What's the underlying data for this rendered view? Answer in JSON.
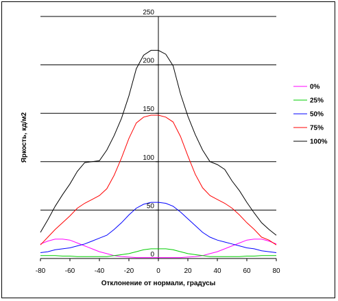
{
  "chart_data": {
    "type": "line",
    "xlabel": "Отклонение от нормали, градусы",
    "ylabel": "Яркость, кд/м2",
    "xlim": [
      -80,
      80
    ],
    "ylim": [
      0,
      250
    ],
    "x_ticks": [
      -80,
      -60,
      -40,
      -20,
      0,
      20,
      40,
      60,
      80
    ],
    "y_ticks": [
      50,
      100,
      150,
      200,
      250
    ],
    "grid": "horizontal",
    "legend": "right",
    "x": [
      -80,
      -75,
      -70,
      -65,
      -60,
      -55,
      -50,
      -45,
      -40,
      -35,
      -30,
      -25,
      -20,
      -15,
      -10,
      -5,
      0,
      5,
      10,
      15,
      20,
      25,
      30,
      35,
      40,
      45,
      50,
      55,
      60,
      65,
      70,
      75,
      80
    ],
    "series": [
      {
        "name": "0%",
        "color": "#ff00ff",
        "values": [
          15,
          18,
          20,
          20,
          19,
          16,
          13,
          10,
          7,
          5,
          3,
          2,
          1.5,
          1,
          1,
          1,
          1,
          1,
          1,
          1,
          1.5,
          2,
          3,
          5,
          7,
          10,
          13,
          16,
          19,
          20,
          20,
          18,
          15
        ]
      },
      {
        "name": "25%",
        "color": "#00cc00",
        "values": [
          3,
          3,
          3,
          2.5,
          2.5,
          2,
          2,
          2,
          2,
          2,
          3,
          4,
          5,
          7,
          9,
          10,
          10,
          10,
          9,
          7,
          5,
          4,
          3,
          2,
          2,
          2,
          2,
          2,
          2.5,
          2.5,
          3,
          3,
          3
        ]
      },
      {
        "name": "50%",
        "color": "#0000ff",
        "values": [
          6,
          7,
          9,
          10,
          11,
          13,
          15,
          18,
          21,
          24,
          30,
          37,
          45,
          52,
          56,
          58,
          58,
          57,
          54,
          48,
          41,
          34,
          27,
          22,
          19,
          17,
          15,
          13,
          11,
          10,
          8,
          7,
          6
        ]
      },
      {
        "name": "75%",
        "color": "#ff0000",
        "values": [
          14,
          22,
          30,
          37,
          44,
          52,
          57,
          61,
          65,
          72,
          86,
          104,
          124,
          140,
          146,
          148,
          148,
          146,
          141,
          126,
          106,
          87,
          73,
          65,
          61,
          57,
          52,
          45,
          37,
          30,
          22,
          19,
          14
        ]
      },
      {
        "name": "100%",
        "color": "#000000",
        "values": [
          27,
          40,
          54,
          66,
          77,
          90,
          99,
          100,
          101,
          112,
          127,
          145,
          168,
          196,
          210,
          215,
          215,
          211,
          199,
          170,
          147,
          128,
          112,
          100,
          97,
          92,
          80,
          70,
          58,
          47,
          37,
          30,
          24
        ]
      }
    ]
  }
}
